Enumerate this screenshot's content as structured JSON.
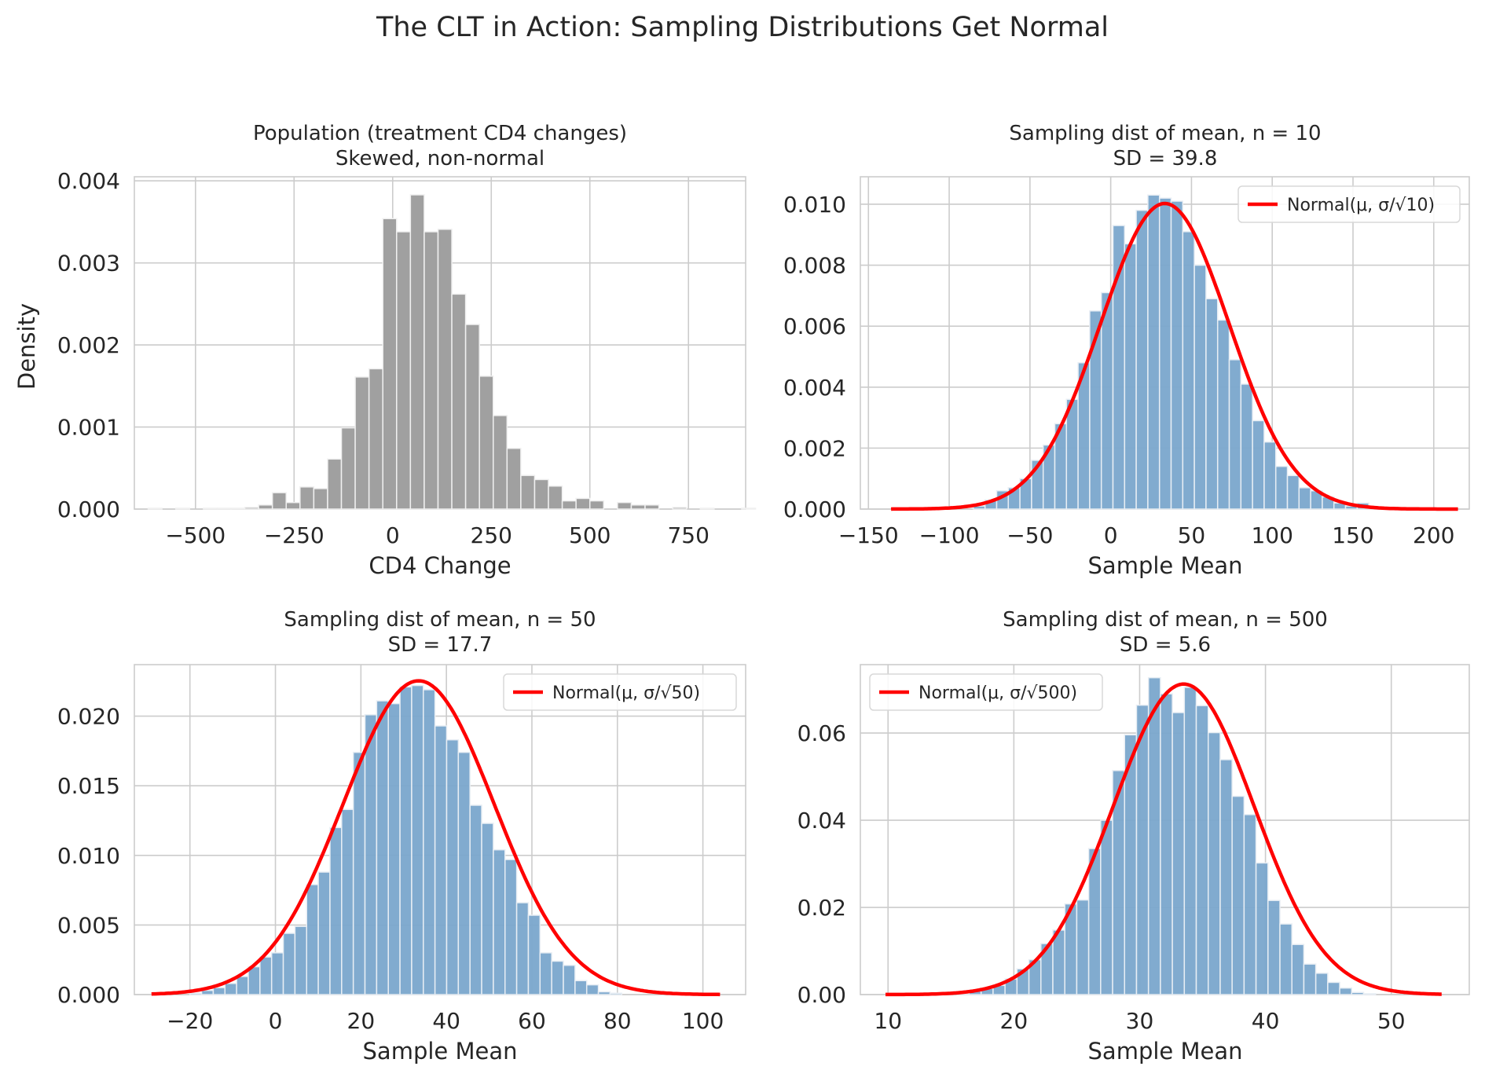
{
  "chart_data": {
    "title": "The CLT in Action: Sampling Distributions Get Normal",
    "colors": {
      "population_bars": "#a0a0a0",
      "sample_bars": "#7aa6cc",
      "normal_curve": "#ff0000",
      "grid": "#cccccc",
      "bar_edge": "#e8eef4"
    },
    "panels": [
      {
        "id": "population",
        "type": "bar",
        "title_line1": "Population (treatment CD4 changes)",
        "title_line2": "Skewed, non-normal",
        "xlabel": "CD4 Change",
        "ylabel": "Density",
        "xlim": [
          -655,
          895
        ],
        "ylim": [
          0,
          0.00405
        ],
        "xticks": [
          -500,
          -250,
          0,
          250,
          500,
          750
        ],
        "xtick_labels": [
          "−500",
          "−250",
          "0",
          "250",
          "500",
          "750"
        ],
        "yticks": [
          0,
          0.001,
          0.002,
          0.003,
          0.004
        ],
        "ytick_labels": [
          "0.000",
          "0.001",
          "0.002",
          "0.003",
          "0.004"
        ],
        "bin_start": -620,
        "bin_width": 35,
        "values": [
          1e-05,
          0.0,
          1e-05,
          0.0,
          1e-05,
          1e-05,
          1e-05,
          2e-05,
          5e-05,
          0.0002,
          8e-05,
          0.00027,
          0.00025,
          0.00061,
          0.00099,
          0.00161,
          0.00171,
          0.00354,
          0.00338,
          0.00383,
          0.00338,
          0.00341,
          0.00262,
          0.00225,
          0.00162,
          0.00114,
          0.00074,
          0.00041,
          0.00036,
          0.00028,
          0.0001,
          0.00013,
          0.0001,
          0.0,
          8e-05,
          5e-05,
          5e-05,
          0.0,
          2e-05,
          0.0,
          1e-05,
          0.0,
          0.0,
          1e-05,
          0.0
        ],
        "legend": null,
        "normal": null
      },
      {
        "id": "n10",
        "type": "bar",
        "title_line1": "Sampling dist of mean, n = 10",
        "title_line2": "SD = 39.8",
        "xlabel": "Sample Mean",
        "ylabel": "",
        "xlim": [
          -155,
          222
        ],
        "ylim": [
          0,
          0.0109
        ],
        "xticks": [
          -150,
          -100,
          -50,
          0,
          50,
          100,
          150,
          200
        ],
        "xtick_labels": [
          "−150",
          "−100",
          "−50",
          "0",
          "50",
          "100",
          "150",
          "200"
        ],
        "yticks": [
          0,
          0.002,
          0.004,
          0.006,
          0.008,
          0.01
        ],
        "ytick_labels": [
          "0.000",
          "0.002",
          "0.004",
          "0.006",
          "0.008",
          "0.010"
        ],
        "bin_start": -85,
        "bin_width": 7.2,
        "values": [
          0.0001,
          0.0003,
          0.0006,
          0.0007,
          0.001,
          0.0016,
          0.0021,
          0.0028,
          0.0036,
          0.0048,
          0.0065,
          0.0071,
          0.0093,
          0.0087,
          0.0098,
          0.0103,
          0.0102,
          0.0101,
          0.0091,
          0.008,
          0.0069,
          0.0062,
          0.0049,
          0.0041,
          0.0029,
          0.0022,
          0.0014,
          0.0011,
          0.0007,
          0.0006,
          0.0004,
          0.0002,
          0.0001,
          0.0002,
          5e-05,
          3e-05
        ],
        "legend": {
          "label": "Normal(μ, σ/√10)",
          "position": "upper-right"
        },
        "normal": {
          "mu": 33.5,
          "sd": 39.8,
          "x_range": [
            -136,
            215
          ]
        }
      },
      {
        "id": "n50",
        "type": "bar",
        "title_line1": "Sampling dist of mean, n = 50",
        "title_line2": "SD = 17.7",
        "xlabel": "Sample Mean",
        "ylabel": "",
        "xlim": [
          -33,
          110
        ],
        "ylim": [
          0,
          0.0237
        ],
        "xticks": [
          -20,
          0,
          20,
          40,
          60,
          80,
          100
        ],
        "xtick_labels": [
          "−20",
          "0",
          "20",
          "40",
          "60",
          "80",
          "100"
        ],
        "yticks": [
          0,
          0.005,
          0.01,
          0.015,
          0.02
        ],
        "ytick_labels": [
          "0.000",
          "0.005",
          "0.010",
          "0.015",
          "0.020"
        ],
        "bin_start": -20,
        "bin_width": 2.73,
        "values": [
          0.0001,
          0.0003,
          0.0005,
          0.0008,
          0.0013,
          0.002,
          0.0027,
          0.003,
          0.0044,
          0.0049,
          0.0079,
          0.0088,
          0.012,
          0.0133,
          0.0174,
          0.0201,
          0.0211,
          0.0209,
          0.0221,
          0.0222,
          0.0219,
          0.0193,
          0.0183,
          0.0174,
          0.0136,
          0.0123,
          0.0104,
          0.0097,
          0.0066,
          0.0057,
          0.003,
          0.0024,
          0.0021,
          0.001,
          0.0007,
          0.0002,
          0.0001
        ],
        "legend": {
          "label": "Normal(μ, σ/√50)",
          "position": "upper-right"
        },
        "normal": {
          "mu": 33.5,
          "sd": 17.7,
          "x_range": [
            -29,
            104
          ]
        }
      },
      {
        "id": "n500",
        "type": "bar",
        "title_line1": "Sampling dist of mean, n = 500",
        "title_line2": "SD = 5.6",
        "xlabel": "Sample Mean",
        "ylabel": "",
        "xlim": [
          7.8,
          56.2
        ],
        "ylim": [
          0,
          0.0757
        ],
        "xticks": [
          10,
          20,
          30,
          40,
          50
        ],
        "xtick_labels": [
          "10",
          "20",
          "30",
          "40",
          "50"
        ],
        "yticks": [
          0,
          0.02,
          0.04,
          0.06
        ],
        "ytick_labels": [
          "0.00",
          "0.02",
          "0.04",
          "0.06"
        ],
        "bin_start": 15.5,
        "bin_width": 0.95,
        "values": [
          0.0002,
          0.0008,
          0.0014,
          0.0021,
          0.0036,
          0.0059,
          0.008,
          0.0117,
          0.0148,
          0.0208,
          0.0217,
          0.0335,
          0.04,
          0.0514,
          0.0596,
          0.0664,
          0.0727,
          0.069,
          0.0647,
          0.0705,
          0.0663,
          0.0601,
          0.0539,
          0.0455,
          0.0413,
          0.0302,
          0.0216,
          0.0162,
          0.0115,
          0.007,
          0.0049,
          0.0028,
          0.0015,
          0.0005,
          0.0002
        ],
        "legend": {
          "label": "Normal(μ, σ/√500)",
          "position": "upper-left"
        },
        "normal": {
          "mu": 33.5,
          "sd": 5.6,
          "x_range": [
            9.8,
            54
          ]
        }
      }
    ]
  }
}
